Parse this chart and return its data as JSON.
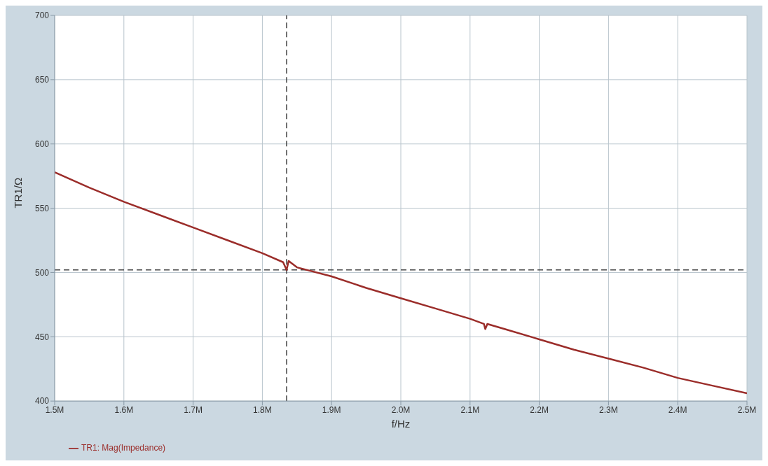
{
  "chart_data": {
    "type": "line",
    "xlabel": "f/Hz",
    "ylabel": "TR1/Ω",
    "x": [
      1500000,
      1550000,
      1600000,
      1650000,
      1700000,
      1750000,
      1800000,
      1830000,
      1835000,
      1838000,
      1850000,
      1900000,
      1950000,
      2000000,
      2050000,
      2100000,
      2120000,
      2122000,
      2125000,
      2150000,
      2200000,
      2250000,
      2300000,
      2350000,
      2400000,
      2450000,
      2500000
    ],
    "series": [
      {
        "name": "TR1: Mag(Impedance)",
        "color": "#9b2d2a",
        "values": [
          578,
          566,
          555,
          545,
          535,
          525,
          515,
          508,
          502,
          509,
          504,
          497,
          488,
          480,
          472,
          464,
          460,
          456,
          460,
          456,
          448,
          440,
          433,
          426,
          418,
          412,
          406
        ]
      }
    ],
    "xlim": [
      1500000,
      2500000
    ],
    "xticks": [
      {
        "value": 1500000,
        "label": "1.5M"
      },
      {
        "value": 1600000,
        "label": "1.6M"
      },
      {
        "value": 1700000,
        "label": "1.7M"
      },
      {
        "value": 1800000,
        "label": "1.8M"
      },
      {
        "value": 1900000,
        "label": "1.9M"
      },
      {
        "value": 2000000,
        "label": "2.0M"
      },
      {
        "value": 2100000,
        "label": "2.1M"
      },
      {
        "value": 2200000,
        "label": "2.2M"
      },
      {
        "value": 2300000,
        "label": "2.3M"
      },
      {
        "value": 2400000,
        "label": "2.4M"
      },
      {
        "value": 2500000,
        "label": "2.5M"
      }
    ],
    "ylim": [
      400,
      700
    ],
    "yticks": [
      400,
      450,
      500,
      550,
      600,
      650,
      700
    ],
    "ref_lines": [
      {
        "axis": "x",
        "value": 1835000,
        "color": "#444444",
        "line_style": "dashed"
      },
      {
        "axis": "y",
        "value": 502,
        "color": "#444444",
        "line_style": "dashed"
      }
    ],
    "grid": true,
    "legend": "bottom left",
    "marker": "none",
    "line_style": "solid"
  }
}
